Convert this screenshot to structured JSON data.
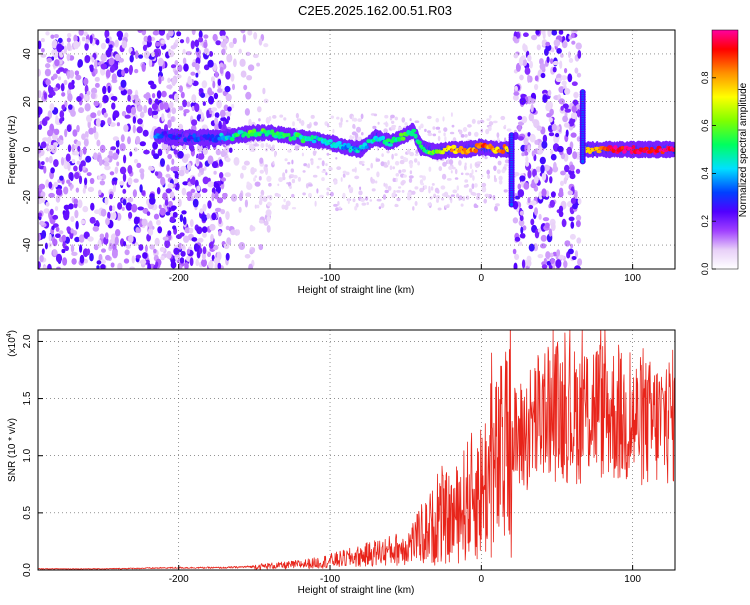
{
  "figure": {
    "title": "C2E5.2025.162.00.51.R03"
  },
  "chart_data": [
    {
      "type": "heatmap",
      "xlabel": "Height of straight line (km)",
      "ylabel": "Frequency (Hz)",
      "xlim": [
        -293,
        128
      ],
      "ylim": [
        -50,
        50
      ],
      "xticks": [
        -200,
        -100,
        0,
        100
      ],
      "xtick_labels": [
        "-200",
        "-100",
        "0",
        "100"
      ],
      "yticks": [
        -40,
        -20,
        0,
        20,
        40
      ],
      "ytick_labels": [
        "-40",
        "-20",
        "0",
        "20",
        "40"
      ],
      "colorbar": {
        "label": "Normalized spectral amplitude",
        "range": [
          0,
          1
        ],
        "ticks": [
          0.0,
          0.2,
          0.4,
          0.6,
          0.8
        ],
        "tick_labels": [
          "0.0",
          "0.2",
          "0.4",
          "0.6",
          "0.8"
        ]
      },
      "noise_regions": [
        {
          "x": [
            -293,
            -165
          ],
          "density": "high"
        },
        {
          "x": [
            -165,
            -140
          ],
          "density": "low"
        },
        {
          "x": [
            22,
            65
          ],
          "density": "high"
        }
      ],
      "signal_track": [
        {
          "x": -215,
          "y": 6,
          "amp": 0.3
        },
        {
          "x": -200,
          "y": 5,
          "amp": 0.25
        },
        {
          "x": -180,
          "y": 5,
          "amp": 0.3
        },
        {
          "x": -170,
          "y": 5,
          "amp": 0.4
        },
        {
          "x": -160,
          "y": 6,
          "amp": 0.5
        },
        {
          "x": -150,
          "y": 7,
          "amp": 0.55
        },
        {
          "x": -140,
          "y": 7,
          "amp": 0.55
        },
        {
          "x": -130,
          "y": 6,
          "amp": 0.5
        },
        {
          "x": -120,
          "y": 5,
          "amp": 0.5
        },
        {
          "x": -110,
          "y": 4,
          "amp": 0.45
        },
        {
          "x": -100,
          "y": 3,
          "amp": 0.45
        },
        {
          "x": -90,
          "y": 1,
          "amp": 0.4
        },
        {
          "x": -80,
          "y": 0,
          "amp": 0.4
        },
        {
          "x": -70,
          "y": 5,
          "amp": 0.45
        },
        {
          "x": -60,
          "y": 3,
          "amp": 0.5
        },
        {
          "x": -50,
          "y": 6,
          "amp": 0.55
        },
        {
          "x": -45,
          "y": 8,
          "amp": 0.5
        },
        {
          "x": -40,
          "y": 1,
          "amp": 0.5
        },
        {
          "x": -30,
          "y": -1,
          "amp": 0.6
        },
        {
          "x": -20,
          "y": 0,
          "amp": 0.75
        },
        {
          "x": -10,
          "y": 0,
          "amp": 0.8
        },
        {
          "x": 0,
          "y": 1,
          "amp": 0.85
        },
        {
          "x": 10,
          "y": 0,
          "amp": 0.8
        },
        {
          "x": 18,
          "y": 0,
          "amp": 0.8
        },
        {
          "x": 68,
          "y": 0,
          "amp": 0.7
        },
        {
          "x": 80,
          "y": 0,
          "amp": 0.9
        },
        {
          "x": 90,
          "y": 0,
          "amp": 0.95
        },
        {
          "x": 100,
          "y": 0,
          "amp": 0.95
        },
        {
          "x": 110,
          "y": 0,
          "amp": 0.95
        },
        {
          "x": 120,
          "y": 0,
          "amp": 0.95
        },
        {
          "x": 128,
          "y": 0,
          "amp": 0.95
        }
      ],
      "spikes": [
        {
          "x": 20,
          "y_from": 6,
          "y_to": -23
        },
        {
          "x": 67,
          "y_from": 24,
          "y_to": -5
        }
      ]
    },
    {
      "type": "line",
      "xlabel": "Height of straight line (km)",
      "ylabel": "SNR (10 * v/v)",
      "y_multiplier": "(x10",
      "y_multiplier_exp": "4",
      "y_multiplier_close": ")",
      "xlim": [
        -293,
        128
      ],
      "ylim": [
        0,
        2.1
      ],
      "xticks": [
        -200,
        -100,
        0,
        100
      ],
      "xtick_labels": [
        "-200",
        "-100",
        "0",
        "100"
      ],
      "yticks": [
        0,
        0.5,
        1.0,
        1.5,
        2.0
      ],
      "ytick_labels": [
        "0.0",
        "0.5",
        "1.0",
        "1.5",
        "2.0"
      ],
      "series": [
        {
          "color": "#e8241a",
          "x": [
            -293,
            -250,
            -200,
            -170,
            -150,
            -130,
            -110,
            -100,
            -90,
            -80,
            -70,
            -60,
            -50,
            -40,
            -30,
            -25,
            -20,
            -15,
            -10,
            -5,
            0,
            5,
            10,
            15,
            20,
            25,
            30,
            35,
            40,
            45,
            50,
            55,
            60,
            65,
            70,
            75,
            80,
            85,
            90,
            95,
            100,
            105,
            110,
            115,
            120,
            128
          ],
          "y": [
            0.01,
            0.01,
            0.02,
            0.02,
            0.03,
            0.04,
            0.06,
            0.08,
            0.1,
            0.12,
            0.15,
            0.17,
            0.2,
            0.3,
            0.4,
            0.45,
            0.45,
            0.5,
            0.6,
            0.65,
            0.7,
            0.8,
            0.9,
            1.0,
            1.1,
            1.15,
            1.2,
            1.3,
            1.35,
            1.35,
            1.4,
            1.38,
            1.35,
            1.35,
            1.4,
            1.45,
            1.4,
            1.38,
            1.35,
            1.3,
            1.3,
            1.3,
            1.28,
            1.28,
            1.3,
            1.35
          ]
        }
      ]
    }
  ]
}
